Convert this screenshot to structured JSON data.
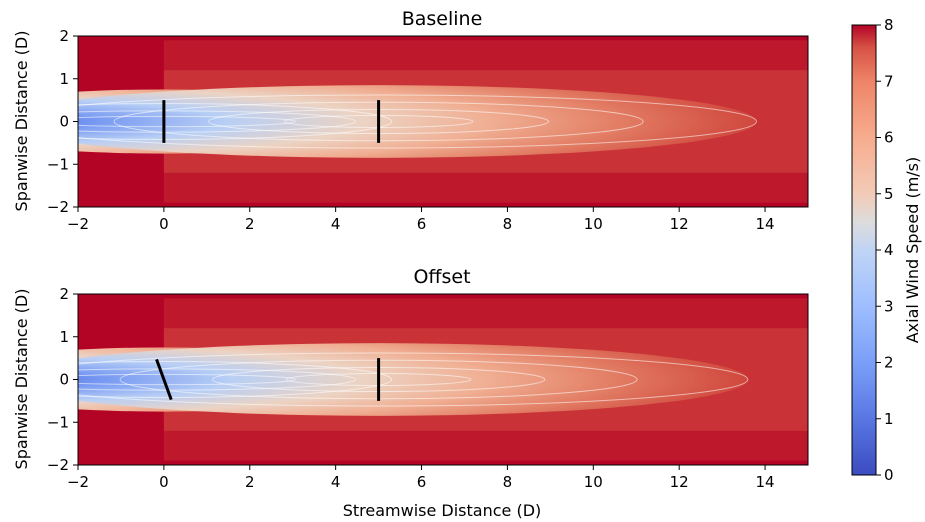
{
  "figure": {
    "colorbar_label": "Axial Wind Speed (m/s)",
    "xlabel": "Streamwise Distance (D)",
    "ylabel": "Spanwise Distance (D)"
  },
  "colors": {
    "colormap": "coolwarm",
    "freestream": "#b40426",
    "turbine": "#000000",
    "contour": "#ffffff"
  },
  "chart_data": [
    {
      "type": "heatmap",
      "title": "Baseline",
      "xlabel": "",
      "ylabel": "Spanwise Distance (D)",
      "xlim": [
        -2,
        15
      ],
      "ylim": [
        -2,
        2
      ],
      "xticks": [
        -2,
        0,
        2,
        4,
        6,
        8,
        10,
        12,
        14
      ],
      "yticks": [
        -2,
        -1,
        0,
        1,
        2
      ],
      "freestream_speed": 8,
      "turbines": [
        {
          "x": 0,
          "y": 0,
          "yaw_deg": 0,
          "rotor_diameter": 1
        },
        {
          "x": 5,
          "y": 0,
          "yaw_deg": 0,
          "rotor_diameter": 1
        }
      ],
      "wake_extent": {
        "contour_end_x": 13.8
      }
    },
    {
      "type": "heatmap",
      "title": "Offset",
      "xlabel": "Streamwise Distance (D)",
      "ylabel": "Spanwise Distance (D)",
      "xlim": [
        -2,
        15
      ],
      "ylim": [
        -2,
        2
      ],
      "xticks": [
        -2,
        0,
        2,
        4,
        6,
        8,
        10,
        12,
        14
      ],
      "yticks": [
        -2,
        -1,
        0,
        1,
        2
      ],
      "freestream_speed": 8,
      "turbines": [
        {
          "x": 0,
          "y": 0,
          "yaw_deg": 20,
          "rotor_diameter": 1
        },
        {
          "x": 5,
          "y": 0,
          "yaw_deg": 0,
          "rotor_diameter": 1
        }
      ],
      "wake_extent": {
        "contour_end_x": 13.6
      }
    }
  ],
  "colorbar": {
    "label": "Axial Wind Speed (m/s)",
    "vmin": 0,
    "vmax": 8,
    "ticks": [
      0,
      1,
      2,
      3,
      4,
      5,
      6,
      7,
      8
    ]
  }
}
